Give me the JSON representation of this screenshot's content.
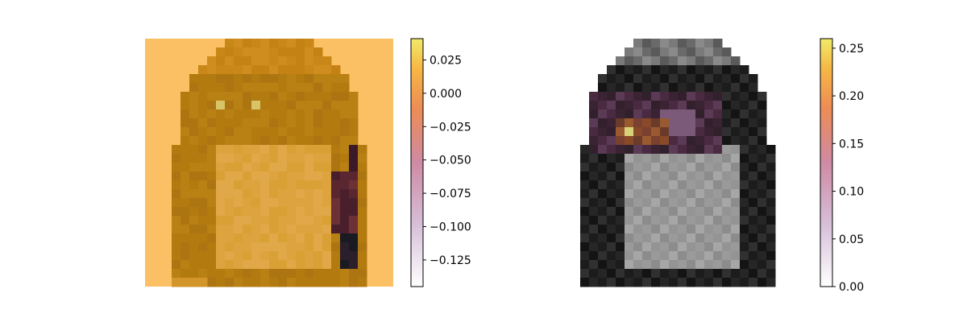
{
  "colors": {
    "left_background": "#fbc063",
    "cmap_gradient": [
      "#ffffff",
      "#c8a2c8",
      "#e6797c",
      "#f2a03a",
      "#f1e86a"
    ],
    "garment_dark": "#ac720f",
    "garment_mid": "#c98718",
    "garment_light": "#dd9f3a"
  },
  "chart_data": [
    {
      "type": "heatmap",
      "title": "",
      "xlabel": "",
      "ylabel": "",
      "colorbar": {
        "ticks": [
          "0.025",
          "0.000",
          "−0.025",
          "−0.050",
          "−0.075",
          "−0.100",
          "−0.125"
        ],
        "range": [
          -0.145,
          0.041
        ]
      }
    },
    {
      "type": "heatmap",
      "title": "",
      "xlabel": "",
      "ylabel": "",
      "colorbar": {
        "ticks": [
          "0.25",
          "0.20",
          "0.15",
          "0.10",
          "0.05",
          "0.00"
        ],
        "range": [
          0.0,
          0.26
        ]
      }
    }
  ]
}
